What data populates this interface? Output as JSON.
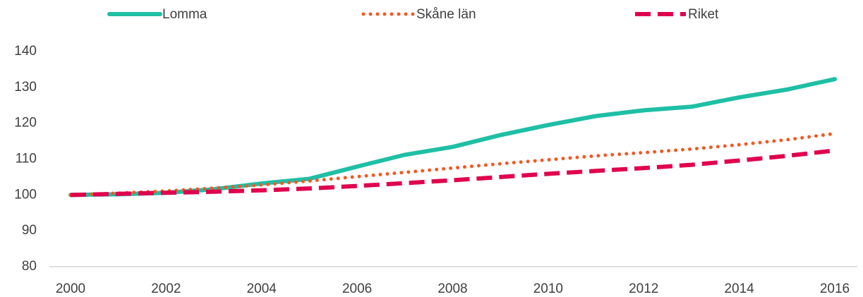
{
  "chart_data": {
    "type": "line",
    "x": [
      2000,
      2001,
      2002,
      2003,
      2004,
      2005,
      2006,
      2007,
      2008,
      2009,
      2010,
      2011,
      2012,
      2013,
      2014,
      2015,
      2016
    ],
    "series": [
      {
        "name": "Lomma",
        "color": "#1fbfa5",
        "style": "solid",
        "values": [
          100,
          100.2,
          100.6,
          101.6,
          103.2,
          104.5,
          107.9,
          111.2,
          113.4,
          116.7,
          119.5,
          122,
          123.6,
          124.6,
          127.2,
          129.4,
          132.3
        ]
      },
      {
        "name": "Skåne län",
        "color": "#f15a24",
        "style": "dotted",
        "values": [
          100,
          100.5,
          101.1,
          101.9,
          102.8,
          103.9,
          105.1,
          106.3,
          107.5,
          108.7,
          109.8,
          110.9,
          111.8,
          112.8,
          114,
          115.4,
          117.1
        ]
      },
      {
        "name": "Riket",
        "color": "#e0004d",
        "style": "dashed",
        "values": [
          100,
          100.3,
          100.6,
          100.9,
          101.3,
          101.8,
          102.5,
          103.3,
          104.1,
          105,
          105.9,
          106.7,
          107.5,
          108.4,
          109.6,
          110.9,
          112.4
        ]
      }
    ],
    "xlim": [
      2000,
      2016
    ],
    "xticks": [
      2000,
      2002,
      2004,
      2006,
      2008,
      2010,
      2012,
      2014,
      2016
    ],
    "ylim": [
      80,
      140
    ],
    "yticks": [
      80,
      90,
      100,
      110,
      120,
      130,
      140
    ],
    "grid": false,
    "legend": "top"
  }
}
